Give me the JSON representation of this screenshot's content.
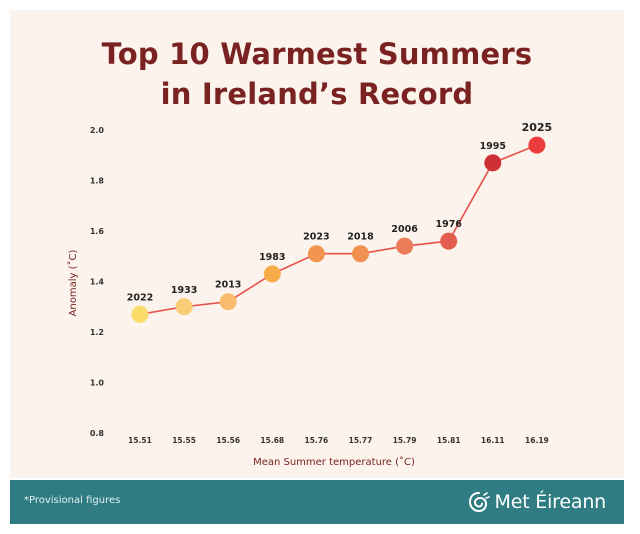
{
  "header": {
    "title_line1": "Top 10 Warmest Summers",
    "title_line2": "in Ireland’s Record"
  },
  "footer": {
    "note": "*Provisional figures",
    "brand": "Met Éireann"
  },
  "colors": {
    "background": "#fbf3ec",
    "title": "#7a2222",
    "line": "#e8504a",
    "footer": "#2f7d82"
  },
  "chart_data": {
    "type": "line",
    "title": "Top 10 Warmest Summers in Ireland’s Record",
    "xlabel": "Mean Summer temperature (˚C)",
    "ylabel": "Anomaly (˚C)",
    "ylim": [
      0.8,
      2.0
    ],
    "yticks": [
      "2.0",
      "1.8",
      "1.6",
      "1.4",
      "1.2",
      "1.0",
      "0.8"
    ],
    "grid": false,
    "categories": [
      "15.51",
      "15.55",
      "15.56",
      "15.68",
      "15.76",
      "15.77",
      "15.79",
      "15.81",
      "16.11",
      "16.19"
    ],
    "series": [
      {
        "values": [
          1.27,
          1.3,
          1.32,
          1.43,
          1.51,
          1.51,
          1.54,
          1.56,
          1.87,
          1.94
        ],
        "point_labels": [
          "2022",
          "1933",
          "2013",
          "1983",
          "2023",
          "2018",
          "2006",
          "1976",
          "1995",
          "2025"
        ],
        "point_colors": [
          "#fbdc6a",
          "#f9cd76",
          "#f8bc6c",
          "#f6ac48",
          "#f3954f",
          "#f1914f",
          "#ec7b58",
          "#e35d4e",
          "#cf3038",
          "#ec3c3c"
        ]
      }
    ]
  }
}
